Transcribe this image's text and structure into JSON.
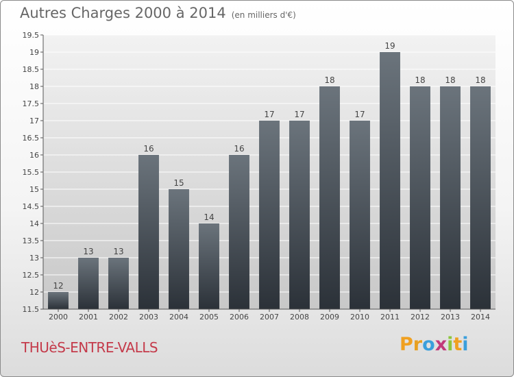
{
  "header": {
    "title": "Autres Charges 2000 à 2014",
    "subtitle": "(en milliers d'€)"
  },
  "footer": {
    "commune": "THUèS-ENTRE-VALLS",
    "logo_letters": [
      "P",
      "r",
      "o",
      "x",
      "i",
      "t",
      "i"
    ],
    "logo_colors": [
      "#f0a020",
      "#e8a020",
      "#3a9fdc",
      "#c23a7a",
      "#8cc63e",
      "#f0a020",
      "#3a9fdc"
    ]
  },
  "chart_data": {
    "type": "bar",
    "categories": [
      "2000",
      "2001",
      "2002",
      "2003",
      "2004",
      "2005",
      "2006",
      "2007",
      "2008",
      "2009",
      "2010",
      "2011",
      "2012",
      "2013",
      "2014"
    ],
    "values": [
      12,
      13,
      13,
      16,
      15,
      14,
      16,
      17,
      17,
      18,
      17,
      19,
      18,
      18,
      18
    ],
    "data_labels": [
      "12",
      "13",
      "13",
      "16",
      "15",
      "14",
      "16",
      "17",
      "17",
      "18",
      "17",
      "19",
      "18",
      "18",
      "18"
    ],
    "yticks": [
      "11.5",
      "12",
      "12.5",
      "13",
      "13.5",
      "14",
      "14.5",
      "15",
      "15.5",
      "16",
      "16.5",
      "17",
      "17.5",
      "18",
      "18.5",
      "19",
      "19.5"
    ],
    "ylim": [
      11.5,
      19.5
    ],
    "grid": true,
    "colors": {
      "bar_top": "#6b747c",
      "bar_bottom": "#2b3138",
      "plot_bg_top": "#f2f2f2",
      "plot_bg_bottom": "#c8c8c8",
      "grid": "#ffffff"
    }
  }
}
